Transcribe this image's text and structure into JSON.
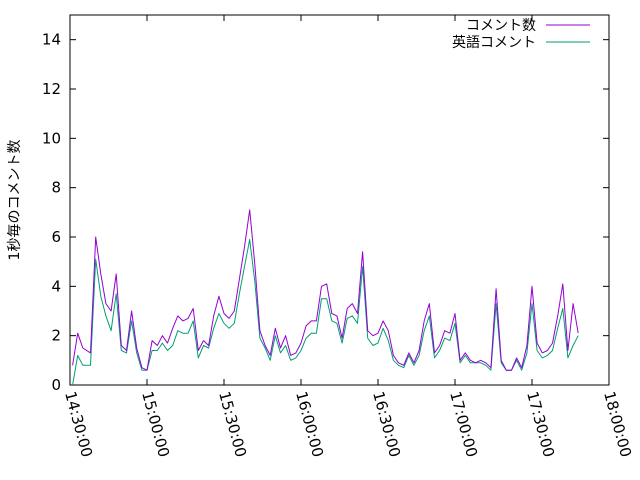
{
  "chart_data": {
    "type": "line",
    "title": "",
    "xlabel": "",
    "ylabel": "1秒毎のコメント数",
    "ylim": [
      0,
      15
    ],
    "yticks": [
      0,
      2,
      4,
      6,
      8,
      10,
      12,
      14
    ],
    "ytick_labels": [
      "0",
      "2",
      "4",
      "6",
      "8",
      "10",
      "12",
      "14"
    ],
    "xlim": [
      "14:30:00",
      "18:00:00"
    ],
    "xticks": [
      "14:30:00",
      "15:00:00",
      "15:30:00",
      "16:00:00",
      "16:30:00",
      "17:00:00",
      "17:30:00",
      "18:00:00"
    ],
    "grid": false,
    "legend_position": "top-right",
    "series": [
      {
        "name": "コメント数",
        "color": "#9400d3",
        "x": [
          "14:31:00",
          "14:33:00",
          "14:35:00",
          "14:38:00",
          "14:40:00",
          "14:42:00",
          "14:44:00",
          "14:46:00",
          "14:48:00",
          "14:50:00",
          "14:52:00",
          "14:54:00",
          "14:56:00",
          "14:58:00",
          "15:00:00",
          "15:02:00",
          "15:04:00",
          "15:06:00",
          "15:08:00",
          "15:10:00",
          "15:12:00",
          "15:14:00",
          "15:16:00",
          "15:18:00",
          "15:20:00",
          "15:22:00",
          "15:24:00",
          "15:26:00",
          "15:28:00",
          "15:30:00",
          "15:32:00",
          "15:34:00",
          "15:36:00",
          "15:38:00",
          "15:40:00",
          "15:42:00",
          "15:44:00",
          "15:46:00",
          "15:48:00",
          "15:50:00",
          "15:52:00",
          "15:54:00",
          "15:56:00",
          "15:58:00",
          "16:00:00",
          "16:02:00",
          "16:04:00",
          "16:06:00",
          "16:08:00",
          "16:10:00",
          "16:12:00",
          "16:14:00",
          "16:16:00",
          "16:18:00",
          "16:20:00",
          "16:22:00",
          "16:24:00",
          "16:26:00",
          "16:28:00",
          "16:30:00",
          "16:32:00",
          "16:34:00",
          "16:36:00",
          "16:38:00",
          "16:40:00",
          "16:42:00",
          "16:44:00",
          "16:46:00",
          "16:48:00",
          "16:50:00",
          "16:52:00",
          "16:54:00",
          "16:56:00",
          "16:58:00",
          "17:00:00",
          "17:02:00",
          "17:04:00",
          "17:06:00",
          "17:08:00",
          "17:10:00",
          "17:12:00",
          "17:14:00",
          "17:16:00",
          "17:18:00",
          "17:20:00",
          "17:22:00",
          "17:24:00",
          "17:26:00",
          "17:28:00",
          "17:30:00",
          "17:32:00",
          "17:34:00",
          "17:36:00",
          "17:38:00",
          "17:40:00",
          "17:42:00",
          "17:44:00",
          "17:46:00",
          "17:48:00"
        ],
        "values": [
          0.8,
          2.1,
          1.5,
          1.3,
          6.0,
          4.5,
          3.3,
          3.0,
          4.5,
          1.6,
          1.4,
          3.0,
          1.5,
          0.7,
          0.6,
          1.8,
          1.6,
          2.0,
          1.7,
          2.3,
          2.8,
          2.6,
          2.7,
          3.1,
          1.4,
          1.8,
          1.6,
          2.8,
          3.6,
          2.9,
          2.7,
          3.0,
          4.3,
          5.6,
          7.1,
          4.9,
          2.2,
          1.6,
          1.2,
          2.3,
          1.5,
          2.0,
          1.2,
          1.3,
          1.7,
          2.4,
          2.6,
          2.6,
          4.0,
          4.1,
          2.9,
          2.8,
          1.9,
          3.1,
          3.3,
          2.9,
          5.4,
          2.2,
          2.0,
          2.1,
          2.6,
          2.2,
          1.2,
          0.9,
          0.8,
          1.3,
          0.9,
          1.4,
          2.6,
          3.3,
          1.3,
          1.6,
          2.2,
          2.1,
          2.9,
          1.0,
          1.3,
          1.0,
          0.9,
          1.0,
          0.9,
          0.7,
          3.9,
          1.0,
          0.6,
          0.6,
          1.1,
          0.7,
          1.6,
          4.0,
          1.7,
          1.3,
          1.4,
          1.7,
          2.8,
          4.1,
          1.4,
          3.3,
          2.1
        ]
      },
      {
        "name": "英語コメント",
        "color": "#009e73",
        "x": [
          "14:31:00",
          "14:33:00",
          "14:35:00",
          "14:38:00",
          "14:40:00",
          "14:42:00",
          "14:44:00",
          "14:46:00",
          "14:48:00",
          "14:50:00",
          "14:52:00",
          "14:54:00",
          "14:56:00",
          "14:58:00",
          "15:00:00",
          "15:02:00",
          "15:04:00",
          "15:06:00",
          "15:08:00",
          "15:10:00",
          "15:12:00",
          "15:14:00",
          "15:16:00",
          "15:18:00",
          "15:20:00",
          "15:22:00",
          "15:24:00",
          "15:26:00",
          "15:28:00",
          "15:30:00",
          "15:32:00",
          "15:34:00",
          "15:36:00",
          "15:38:00",
          "15:40:00",
          "15:42:00",
          "15:44:00",
          "15:46:00",
          "15:48:00",
          "15:50:00",
          "15:52:00",
          "15:54:00",
          "15:56:00",
          "15:58:00",
          "16:00:00",
          "16:02:00",
          "16:04:00",
          "16:06:00",
          "16:08:00",
          "16:10:00",
          "16:12:00",
          "16:14:00",
          "16:16:00",
          "16:18:00",
          "16:20:00",
          "16:22:00",
          "16:24:00",
          "16:26:00",
          "16:28:00",
          "16:30:00",
          "16:32:00",
          "16:34:00",
          "16:36:00",
          "16:38:00",
          "16:40:00",
          "16:42:00",
          "16:44:00",
          "16:46:00",
          "16:48:00",
          "16:50:00",
          "16:52:00",
          "16:54:00",
          "16:56:00",
          "16:58:00",
          "17:00:00",
          "17:02:00",
          "17:04:00",
          "17:06:00",
          "17:08:00",
          "17:10:00",
          "17:12:00",
          "17:14:00",
          "17:16:00",
          "17:18:00",
          "17:20:00",
          "17:22:00",
          "17:24:00",
          "17:26:00",
          "17:28:00",
          "17:30:00",
          "17:32:00",
          "17:34:00",
          "17:36:00",
          "17:38:00",
          "17:40:00",
          "17:42:00",
          "17:44:00",
          "17:46:00",
          "17:48:00"
        ],
        "values": [
          0.0,
          1.2,
          0.8,
          0.8,
          5.1,
          3.6,
          2.8,
          2.2,
          3.7,
          1.4,
          1.3,
          2.6,
          1.3,
          0.6,
          0.6,
          1.4,
          1.4,
          1.7,
          1.4,
          1.6,
          2.2,
          2.1,
          2.1,
          2.6,
          1.1,
          1.6,
          1.5,
          2.3,
          2.9,
          2.5,
          2.3,
          2.5,
          3.7,
          4.8,
          5.9,
          4.2,
          1.9,
          1.5,
          1.0,
          2.0,
          1.3,
          1.6,
          1.0,
          1.1,
          1.4,
          1.9,
          2.1,
          2.1,
          3.5,
          3.5,
          2.6,
          2.5,
          1.7,
          2.7,
          2.8,
          2.5,
          4.8,
          1.9,
          1.6,
          1.7,
          2.3,
          1.8,
          1.0,
          0.8,
          0.7,
          1.2,
          0.8,
          1.2,
          2.2,
          2.8,
          1.1,
          1.4,
          1.9,
          1.8,
          2.5,
          0.9,
          1.2,
          0.9,
          0.9,
          0.9,
          0.8,
          0.6,
          3.3,
          0.9,
          0.6,
          0.6,
          1.0,
          0.6,
          1.3,
          3.3,
          1.4,
          1.1,
          1.2,
          1.4,
          2.3,
          3.1,
          1.1,
          1.6,
          2.0
        ]
      }
    ]
  }
}
